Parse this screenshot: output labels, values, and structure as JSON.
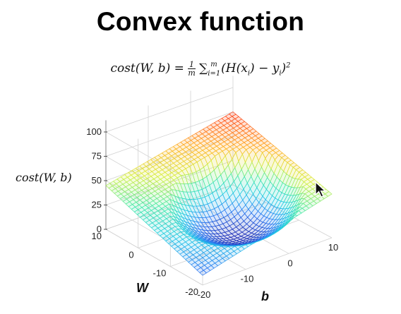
{
  "title": "Convex function",
  "formula": "cost(W, b) = 1/m ∑_{i=1}^{m} (H(x_i) − y_i)²",
  "chart_data": {
    "type": "surface",
    "title": "Convex function",
    "zlabel": "cost(W, b)",
    "xlabel": "W",
    "ylabel": "b",
    "z_ticks": [
      "0",
      "25",
      "50",
      "75",
      "100"
    ],
    "w_ticks": [
      "10",
      "0",
      "-10",
      "-20"
    ],
    "b_ticks": [
      "-20",
      "-10",
      "0",
      "10"
    ],
    "wlim": [
      -20,
      10
    ],
    "blim": [
      -20,
      10
    ],
    "zlim": [
      0,
      100
    ],
    "grid": true,
    "colormap": [
      "#1e2cb4",
      "#2c7bf2",
      "#22c8e6",
      "#42e8a8",
      "#d6ee3c",
      "#ffb020",
      "#ff4818",
      "#cc0000"
    ],
    "surface_corners": [
      {
        "w": 10,
        "b": -20,
        "cost": 45
      },
      {
        "w": -20,
        "b": -20,
        "cost": 10
      },
      {
        "w": -20,
        "b": 10,
        "cost": 45
      },
      {
        "w": 10,
        "b": 10,
        "cost": 75
      }
    ],
    "minimum": {
      "w": 0,
      "b": 0,
      "cost": 0
    }
  }
}
